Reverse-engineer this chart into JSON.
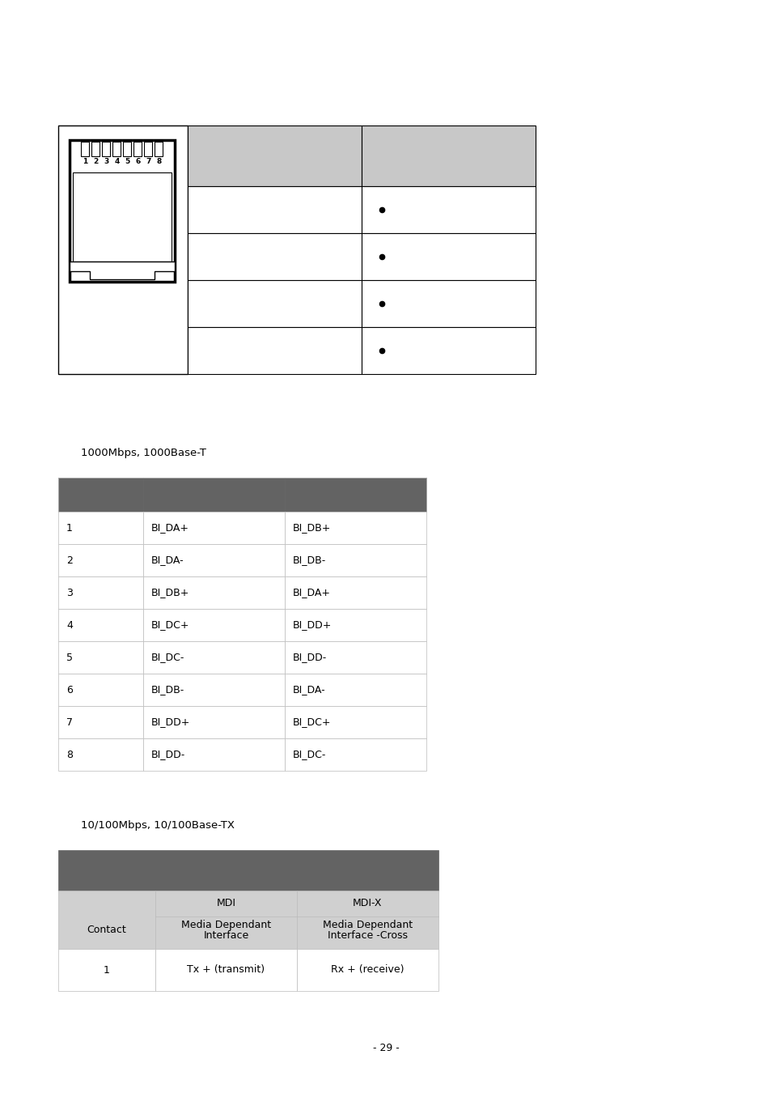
{
  "background_color": "#ffffff",
  "page_number": "- 29 -",
  "table2_title": "1000Mbps, 1000Base-T",
  "table2_data": [
    [
      "1",
      "BI_DA+",
      "BI_DB+"
    ],
    [
      "2",
      "BI_DA-",
      "BI_DB-"
    ],
    [
      "3",
      "BI_DB+",
      "BI_DA+"
    ],
    [
      "4",
      "BI_DC+",
      "BI_DD+"
    ],
    [
      "5",
      "BI_DC-",
      "BI_DD-"
    ],
    [
      "6",
      "BI_DB-",
      "BI_DA-"
    ],
    [
      "7",
      "BI_DD+",
      "BI_DC+"
    ],
    [
      "8",
      "BI_DD-",
      "BI_DC-"
    ]
  ],
  "table3_title": "10/100Mbps, 10/100Base-TX",
  "table3_header1": [
    "",
    "MDI",
    "MDI-X"
  ],
  "table3_header2": [
    "Contact",
    "Media Dependant\nInterface",
    "Media Dependant\nInterface -Cross"
  ],
  "table3_data": [
    [
      "1",
      "Tx + (transmit)",
      "Rx + (receive)"
    ]
  ],
  "header_gray": "#c8c8c8",
  "dark_gray": "#636363",
  "light_gray": "#d0d0d0",
  "edge_color": "#888888",
  "light_edge": "#bbbbbb"
}
